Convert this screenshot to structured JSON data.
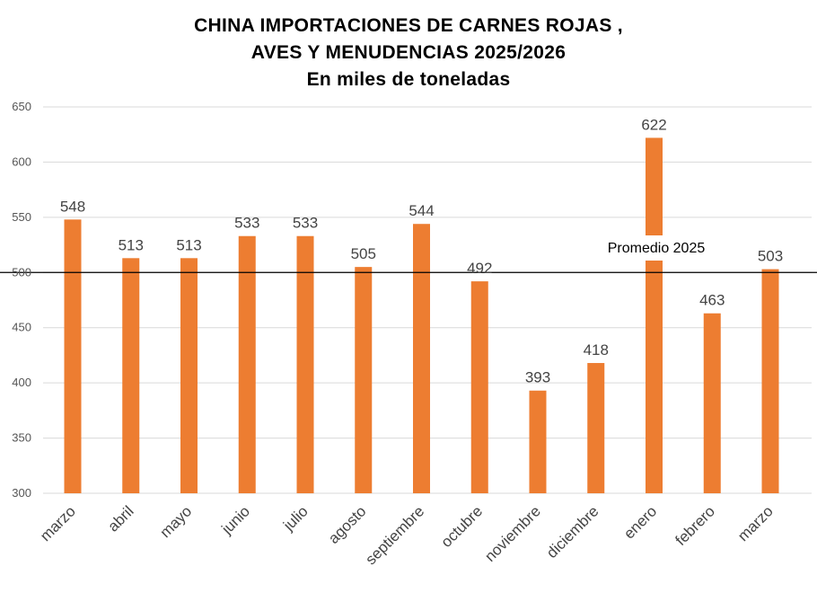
{
  "title_lines": [
    "CHINA IMPORTACIONES DE CARNES ROJAS ,",
    "AVES Y MENUDENCIAS 2025/2026",
    "En miles de toneladas"
  ],
  "chart_data": {
    "type": "bar",
    "categories": [
      "marzo",
      "abril",
      "mayo",
      "junio",
      "julio",
      "agosto",
      "septiembre",
      "octubre",
      "noviembre",
      "diciembre",
      "enero",
      "febrero",
      "marzo"
    ],
    "values": [
      548,
      513,
      513,
      533,
      533,
      505,
      544,
      492,
      393,
      418,
      622,
      463,
      503
    ],
    "title": "CHINA IMPORTACIONES DE CARNES ROJAS , AVES Y MENUDENCIAS 2025/2026",
    "subtitle": "En miles de toneladas",
    "xlabel": "",
    "ylabel": "",
    "ylim": [
      300,
      650
    ],
    "yticks": [
      300,
      350,
      400,
      450,
      500,
      550,
      600,
      650
    ],
    "grid": true,
    "legend": "none",
    "bar_color": "#ED7D31",
    "reference_line": {
      "value": 500,
      "label": "Promedio 2025",
      "color": "#000000"
    }
  }
}
